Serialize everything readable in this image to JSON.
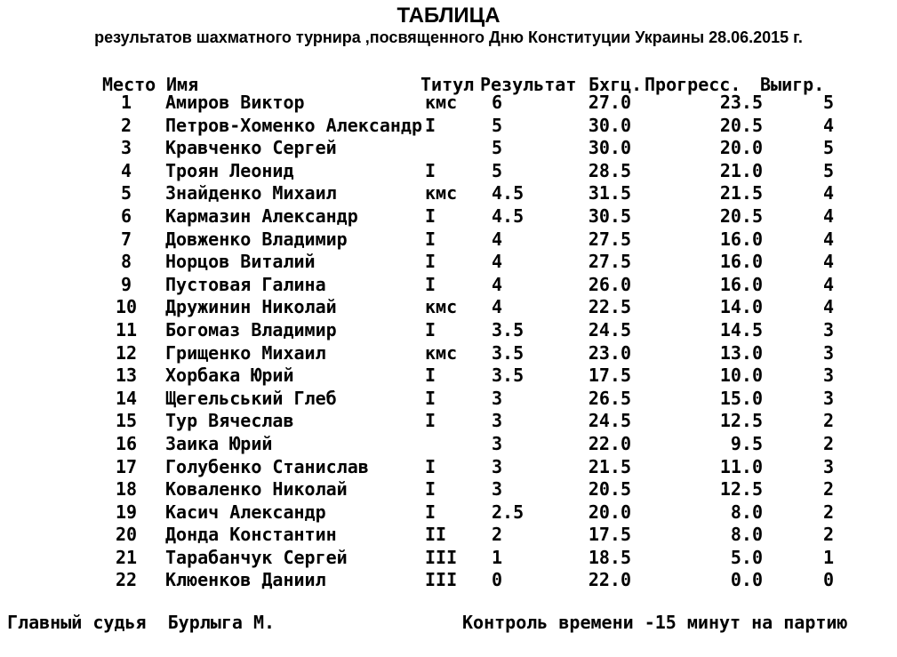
{
  "title": "ТАБЛИЦА",
  "subtitle": "результатов шахматного турнира ,посвященного Дню Конституции Украины 28.06.2015 г.",
  "table": {
    "columns": [
      "Место",
      "Имя",
      "Титул",
      "Результат",
      "Бхгц.",
      "Прогресс.",
      "Выигр."
    ],
    "rows": [
      {
        "place": "1",
        "name": "Амиров Виктор",
        "title": "кмс",
        "result": "6",
        "buchholz": "27.0",
        "progress": "23.5",
        "wins": "5"
      },
      {
        "place": "2",
        "name": "Петров-Хоменко Александр",
        "title": "I",
        "result": "5",
        "buchholz": "30.0",
        "progress": "20.5",
        "wins": "4"
      },
      {
        "place": "3",
        "name": "Кравченко Сергей",
        "title": "",
        "result": "5",
        "buchholz": "30.0",
        "progress": "20.0",
        "wins": "5"
      },
      {
        "place": "4",
        "name": "Троян Леонид",
        "title": "I",
        "result": "5",
        "buchholz": "28.5",
        "progress": "21.0",
        "wins": "5"
      },
      {
        "place": "5",
        "name": "Знайденко Михаил",
        "title": "кмс",
        "result": "4.5",
        "buchholz": "31.5",
        "progress": "21.5",
        "wins": "4"
      },
      {
        "place": "6",
        "name": "Кармазин Александр",
        "title": "I",
        "result": "4.5",
        "buchholz": "30.5",
        "progress": "20.5",
        "wins": "4"
      },
      {
        "place": "7",
        "name": "Довженко Владимир",
        "title": "I",
        "result": "4",
        "buchholz": "27.5",
        "progress": "16.0",
        "wins": "4"
      },
      {
        "place": "8",
        "name": "Норцов Виталий",
        "title": "I",
        "result": "4",
        "buchholz": "27.5",
        "progress": "16.0",
        "wins": "4"
      },
      {
        "place": "9",
        "name": "Пустовая Галина",
        "title": "I",
        "result": "4",
        "buchholz": "26.0",
        "progress": "16.0",
        "wins": "4"
      },
      {
        "place": "10",
        "name": "Дружинин Николай",
        "title": "кмс",
        "result": "4",
        "buchholz": "22.5",
        "progress": "14.0",
        "wins": "4"
      },
      {
        "place": "11",
        "name": "Богомаз Владимир",
        "title": "I",
        "result": "3.5",
        "buchholz": "24.5",
        "progress": "14.5",
        "wins": "3"
      },
      {
        "place": "12",
        "name": "Грищенко Михаил",
        "title": "кмс",
        "result": "3.5",
        "buchholz": "23.0",
        "progress": "13.0",
        "wins": "3"
      },
      {
        "place": "13",
        "name": "Хорбака Юрий",
        "title": "I",
        "result": "3.5",
        "buchholz": "17.5",
        "progress": "10.0",
        "wins": "3"
      },
      {
        "place": "14",
        "name": "Щегельський Глеб",
        "title": "I",
        "result": "3",
        "buchholz": "26.5",
        "progress": "15.0",
        "wins": "3"
      },
      {
        "place": "15",
        "name": "Тур Вячеслав",
        "title": "I",
        "result": "3",
        "buchholz": "24.5",
        "progress": "12.5",
        "wins": "2"
      },
      {
        "place": "16",
        "name": "Заика Юрий",
        "title": "",
        "result": "3",
        "buchholz": "22.0",
        "progress": "9.5",
        "wins": "2"
      },
      {
        "place": "17",
        "name": "Голубенко Станислав",
        "title": "I",
        "result": "3",
        "buchholz": "21.5",
        "progress": "11.0",
        "wins": "3"
      },
      {
        "place": "18",
        "name": "Коваленко Николай",
        "title": "I",
        "result": "3",
        "buchholz": "20.5",
        "progress": "12.5",
        "wins": "2"
      },
      {
        "place": "19",
        "name": "Касич Александр",
        "title": "I",
        "result": "2.5",
        "buchholz": "20.0",
        "progress": "8.0",
        "wins": "2"
      },
      {
        "place": "20",
        "name": "Донда Константин",
        "title": "II",
        "result": "2",
        "buchholz": "17.5",
        "progress": "8.0",
        "wins": "2"
      },
      {
        "place": "21",
        "name": "Тарабанчук Сергей",
        "title": "III",
        "result": "1",
        "buchholz": "18.5",
        "progress": "5.0",
        "wins": "1"
      },
      {
        "place": "22",
        "name": "Клюенков Даниил",
        "title": "III",
        "result": "0",
        "buchholz": "22.0",
        "progress": "0.0",
        "wins": "0"
      }
    ]
  },
  "footer": {
    "left": "Главный судья  Бурлыга М.",
    "right": "Контроль времени -15 минут на партию"
  }
}
